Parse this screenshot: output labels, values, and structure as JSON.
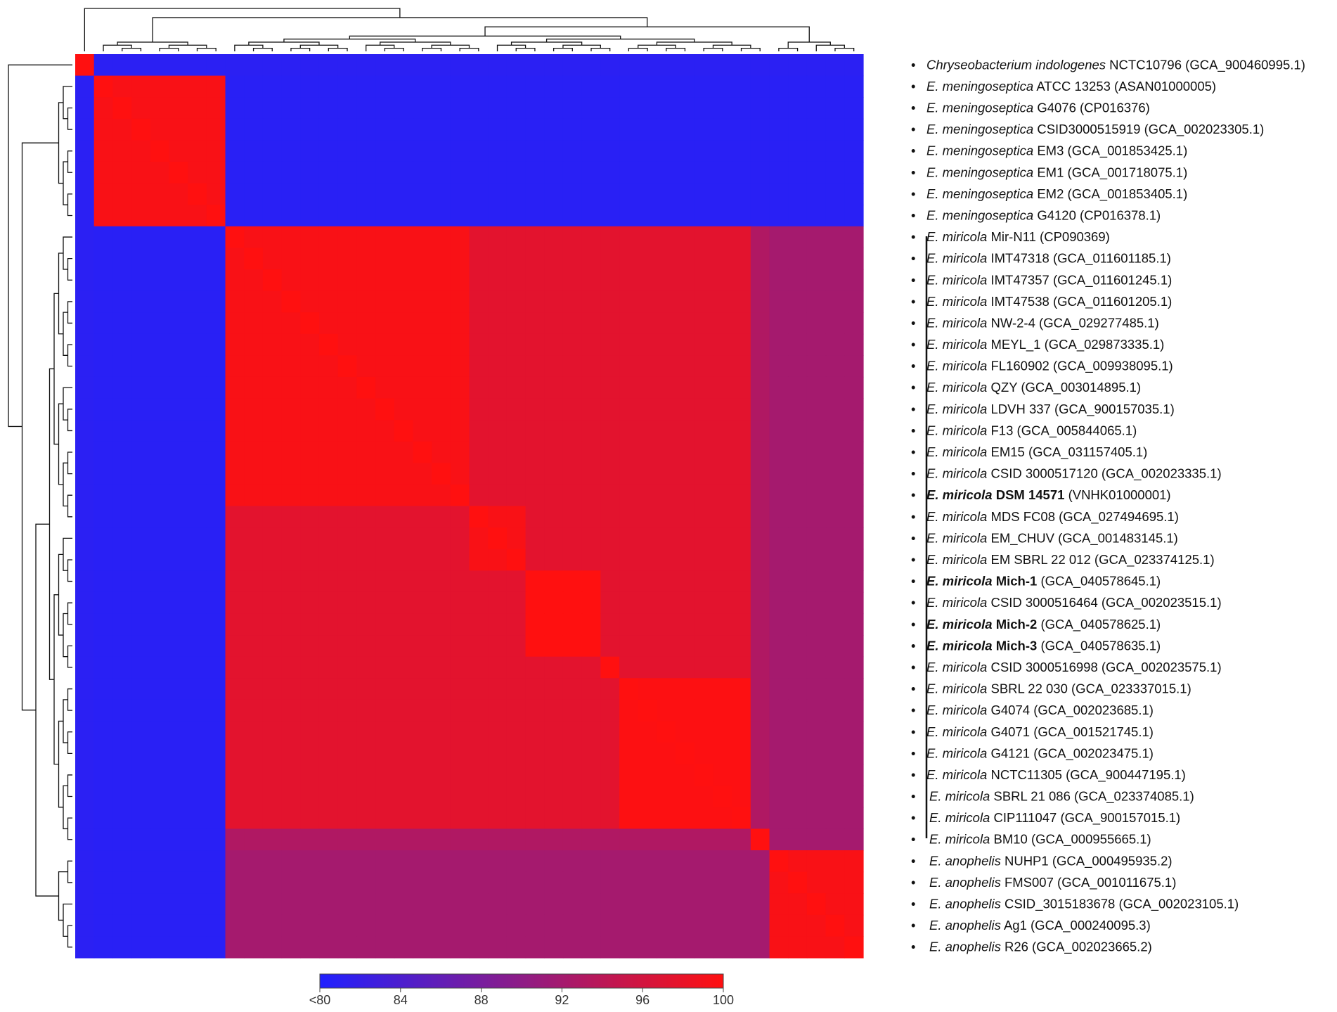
{
  "chart_data": {
    "type": "heatmap",
    "title": "",
    "colorbar": {
      "low_color": "#2020ff",
      "mid_color": "#8e1c86",
      "high_color": "#ff1010",
      "tick_labels": [
        "<80",
        "84",
        "88",
        "92",
        "96",
        "100"
      ],
      "ticks": [
        80,
        84,
        88,
        92,
        96,
        100
      ],
      "range": [
        80,
        100
      ]
    },
    "rows": [
      {
        "species": "Chryseobacterium indologenes",
        "strain": "NCTC10796",
        "accession": "(GCA_900460995.1)",
        "bold": false
      },
      {
        "species": "E. meningoseptica",
        "strain": "ATCC 13253",
        "accession": "(ASAN01000005)",
        "bold": false
      },
      {
        "species": "E. meningoseptica",
        "strain": "G4076",
        "accession": "(CP016376)",
        "bold": false
      },
      {
        "species": "E. meningoseptica",
        "strain": "CSID3000515919",
        "accession": "(GCA_002023305.1)",
        "bold": false
      },
      {
        "species": "E. meningoseptica",
        "strain": "EM3",
        "accession": "(GCA_001853425.1)",
        "bold": false
      },
      {
        "species": "E. meningoseptica",
        "strain": "EM1",
        "accession": "(GCA_001718075.1)",
        "bold": false
      },
      {
        "species": "E. meningoseptica",
        "strain": "EM2",
        "accession": "(GCA_001853405.1)",
        "bold": false
      },
      {
        "species": "E. meningoseptica",
        "strain": "G4120",
        "accession": "(CP016378.1)",
        "bold": false
      },
      {
        "species": "E. miricola",
        "strain": "Mir-N11",
        "accession": "(CP090369)",
        "bold": false
      },
      {
        "species": "E. miricola",
        "strain": "IMT47318",
        "accession": "(GCA_011601185.1)",
        "bold": false
      },
      {
        "species": "E. miricola",
        "strain": "IMT47357",
        "accession": "(GCA_011601245.1)",
        "bold": false
      },
      {
        "species": "E. miricola",
        "strain": "IMT47538",
        "accession": "(GCA_011601205.1)",
        "bold": false
      },
      {
        "species": "E. miricola",
        "strain": "NW-2-4",
        "accession": "(GCA_029277485.1)",
        "bold": false
      },
      {
        "species": "E. miricola",
        "strain": "MEYL_1",
        "accession": "(GCA_029873335.1)",
        "bold": false
      },
      {
        "species": "E. miricola",
        "strain": "FL160902",
        "accession": "(GCA_009938095.1)",
        "bold": false
      },
      {
        "species": "E. miricola",
        "strain": "QZY",
        "accession": "(GCA_003014895.1)",
        "bold": false
      },
      {
        "species": "E. miricola",
        "strain": "LDVH 337",
        "accession": "(GCA_900157035.1)",
        "bold": false
      },
      {
        "species": "E. miricola",
        "strain": "F13",
        "accession": "(GCA_005844065.1)",
        "bold": false
      },
      {
        "species": "E. miricola",
        "strain": "EM15",
        "accession": "(GCA_031157405.1)",
        "bold": false
      },
      {
        "species": "E. miricola",
        "strain": "CSID 3000517120",
        "accession": "(GCA_002023335.1)",
        "bold": false
      },
      {
        "species": "E. miricola",
        "strain": "DSM 14571",
        "accession": "(VNHK01000001)",
        "bold": true
      },
      {
        "species": "E. miricola",
        "strain": "MDS FC08",
        "accession": "(GCA_027494695.1)",
        "bold": false
      },
      {
        "species": "E. miricola",
        "strain": "EM_CHUV",
        "accession": "(GCA_001483145.1)",
        "bold": false
      },
      {
        "species": "E. miricola",
        "strain": "EM SBRL 22 012",
        "accession": "(GCA_023374125.1)",
        "bold": false
      },
      {
        "species": "E. miricola",
        "strain": "Mich-1",
        "accession": "(GCA_040578645.1)",
        "bold": true
      },
      {
        "species": "E. miricola",
        "strain": "CSID 3000516464",
        "accession": "(GCA_002023515.1)",
        "bold": false
      },
      {
        "species": "E. miricola",
        "strain": "Mich-2",
        "accession": "(GCA_040578625.1)",
        "bold": true
      },
      {
        "species": "E. miricola",
        "strain": "Mich-3",
        "accession": "(GCA_040578635.1)",
        "bold": true
      },
      {
        "species": "E. miricola",
        "strain": "CSID 3000516998",
        "accession": "(GCA_002023575.1)",
        "bold": false
      },
      {
        "species": "E. miricola",
        "strain": "SBRL 22 030",
        "accession": "(GCA_023337015.1)",
        "bold": false
      },
      {
        "species": "E. miricola",
        "strain": "G4074",
        "accession": "(GCA_002023685.1)",
        "bold": false
      },
      {
        "species": "E. miricola",
        "strain": "G4071",
        "accession": "(GCA_001521745.1)",
        "bold": false
      },
      {
        "species": "E. miricola",
        "strain": "G4121",
        "accession": "(GCA_002023475.1)",
        "bold": false
      },
      {
        "species": "E. miricola",
        "strain": "NCTC11305",
        "accession": "(GCA_900447195.1)",
        "bold": false
      },
      {
        "species": "E. miricola",
        "strain": "SBRL 21 086",
        "accession": "(GCA_023374085.1)",
        "bold": false
      },
      {
        "species": "E. miricola",
        "strain": "CIP111047",
        "accession": "(GCA_900157015.1)",
        "bold": false
      },
      {
        "species": "E. miricola",
        "strain": "BM10",
        "accession": "(GCA_000955665.1)",
        "bold": false
      },
      {
        "species": "E. anophelis",
        "strain": "NUHP1",
        "accession": "(GCA_000495935.2)",
        "bold": false
      },
      {
        "species": "E. anophelis",
        "strain": "FMS007",
        "accession": "(GCA_001011675.1)",
        "bold": false
      },
      {
        "species": "E. anophelis",
        "strain": "CSID_3015183678",
        "accession": "(GCA_002023105.1)",
        "bold": false
      },
      {
        "species": "E. anophelis",
        "strain": "Ag1",
        "accession": "(GCA_000240095.3)",
        "bold": false
      },
      {
        "species": "E. anophelis",
        "strain": "R26",
        "accession": "(GCA_002023665.2)",
        "bold": false
      }
    ],
    "blocks": [
      {
        "group": "Chryseobacterium indologenes",
        "start": 0,
        "end": 0
      },
      {
        "group": "E. meningoseptica",
        "start": 1,
        "end": 7
      },
      {
        "group": "E. miricola",
        "start": 8,
        "end": 36
      },
      {
        "group": "E. anophelis",
        "start": 37,
        "end": 41
      }
    ],
    "block_similarity": {
      "within_species": 99.5,
      "miricola_subclusters": [
        {
          "start": 8,
          "end": 20,
          "within": 99.5
        },
        {
          "start": 21,
          "end": 23,
          "within": 99.5
        },
        {
          "start": 24,
          "end": 27,
          "within": 100
        },
        {
          "start": 28,
          "end": 28,
          "within": 100
        },
        {
          "start": 29,
          "end": 35,
          "within": 99.8
        },
        {
          "start": 36,
          "end": 36,
          "within": 100
        }
      ],
      "miricola_between_subclusters": 97.5,
      "miricola_vs_anophelis": 92.0,
      "miricola_outer_vs_inner": 93.0,
      "between_other_species": 80.8,
      "chryseobacterium_vs_all": 81.0
    }
  }
}
